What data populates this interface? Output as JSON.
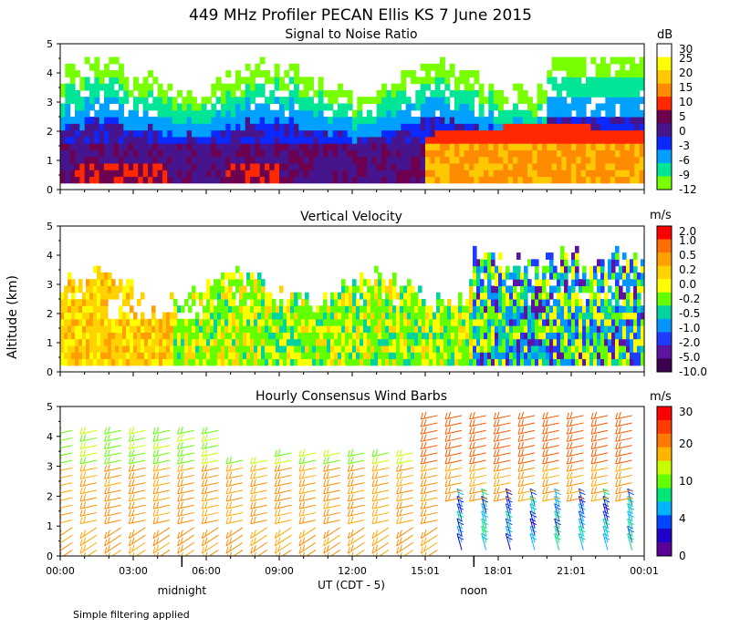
{
  "title": "449 MHz Profiler PECAN Ellis KS  7 June 2015",
  "ylabel": "Altitude (km)",
  "xlabel": "UT  (CDT - 5)",
  "footnote": "Simple filtering applied",
  "local_time_labels": [
    {
      "text": "midnight",
      "hour": 5
    },
    {
      "text": "noon",
      "hour": 17
    }
  ],
  "x_ticks": [
    "00:00",
    "03:00",
    "06:00",
    "09:00",
    "12:00",
    "15:01",
    "18:01",
    "21:01",
    "00:01"
  ],
  "chart_data": [
    {
      "type": "heatmap",
      "title": "Signal to Noise Ratio",
      "x_range_hours": [
        0,
        24
      ],
      "ylim": [
        0,
        5
      ],
      "y_ticks": [
        "0",
        "1",
        "2",
        "3",
        "4",
        "5"
      ],
      "colorbar": {
        "unit": "dB",
        "labels": [
          "30",
          "25",
          "20",
          "15",
          "10",
          "5",
          "0",
          "-3",
          "-6",
          "-9",
          "-12"
        ],
        "colors": [
          "#ffffff",
          "#ffff00",
          "#ffc800",
          "#ff8c00",
          "#ff2800",
          "#6e0050",
          "#46148c",
          "#0a28ff",
          "#00a0ff",
          "#00e696",
          "#78ff00"
        ]
      }
    },
    {
      "type": "heatmap",
      "title": "Vertical Velocity",
      "x_range_hours": [
        0,
        24
      ],
      "ylim": [
        0,
        5
      ],
      "y_ticks": [
        "0",
        "1",
        "2",
        "3",
        "4",
        "5"
      ],
      "colorbar": {
        "unit": "m/s",
        "labels": [
          "2.0",
          "1.0",
          "0.5",
          "0.2",
          "0.0",
          "-0.2",
          "-0.5",
          "-1.0",
          "-2.0",
          "-5.0",
          "-10.0"
        ],
        "colors": [
          "#ff0000",
          "#ff6e00",
          "#ffa000",
          "#ffd200",
          "#ffff00",
          "#64ff00",
          "#00d2a0",
          "#0096ff",
          "#1e3cff",
          "#5a14a0",
          "#3c0050"
        ]
      }
    },
    {
      "type": "wind_barbs",
      "title": "Hourly Consensus Wind Barbs",
      "x_range_hours": [
        0,
        24
      ],
      "ylim": [
        0,
        5
      ],
      "y_ticks": [
        "0",
        "1",
        "2",
        "3",
        "4",
        "5"
      ],
      "colorbar": {
        "unit": "m/s",
        "labels": [
          "30",
          "20",
          "10",
          "4",
          "0"
        ],
        "colors": [
          "#ff0000",
          "#ff3c00",
          "#ff7800",
          "#ffb400",
          "#c8ff00",
          "#64ff00",
          "#00e678",
          "#00b4ff",
          "#0046ff",
          "#1e00c8",
          "#5a0096"
        ]
      }
    }
  ]
}
